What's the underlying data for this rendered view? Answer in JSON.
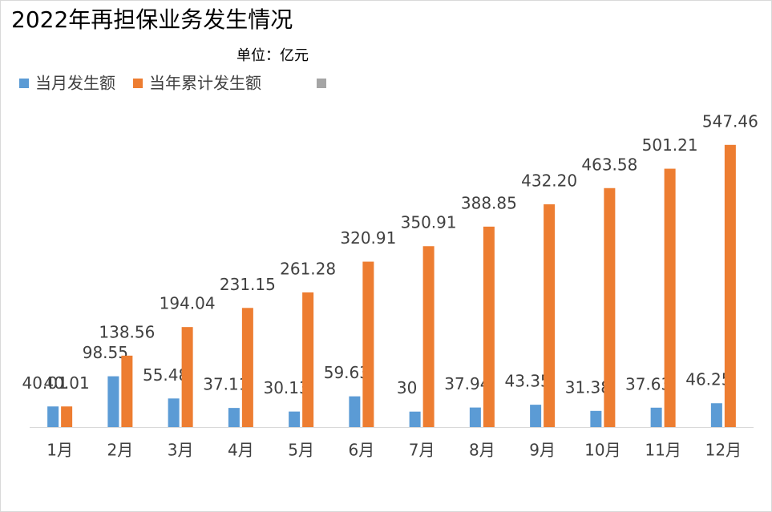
{
  "chart_data": {
    "type": "bar",
    "title": "2022年再担保业务发生情况",
    "subtitle": "单位：亿元",
    "categories": [
      "1月",
      "2月",
      "3月",
      "4月",
      "5月",
      "6月",
      "7月",
      "8月",
      "9月",
      "10月",
      "11月",
      "12月"
    ],
    "series": [
      {
        "name": "当月发生额",
        "color": "#5b9bd5",
        "values": [
          40.01,
          98.55,
          55.48,
          37.11,
          30.13,
          59.63,
          30,
          37.94,
          43.35,
          31.38,
          37.63,
          46.25
        ]
      },
      {
        "name": "当年累计发生额",
        "color": "#ed7d31",
        "values": [
          40.01,
          138.56,
          194.04,
          231.15,
          261.28,
          320.91,
          350.91,
          388.85,
          432.2,
          463.58,
          501.21,
          547.46
        ],
        "value_labels": [
          "40.01",
          "138.56",
          "194.04",
          "231.15",
          "261.28",
          "320.91",
          "350.91",
          "388.85",
          "432.20",
          "463.58",
          "501.21",
          "547.46"
        ]
      }
    ],
    "ylim": [
      0,
      600
    ],
    "grid": false
  }
}
